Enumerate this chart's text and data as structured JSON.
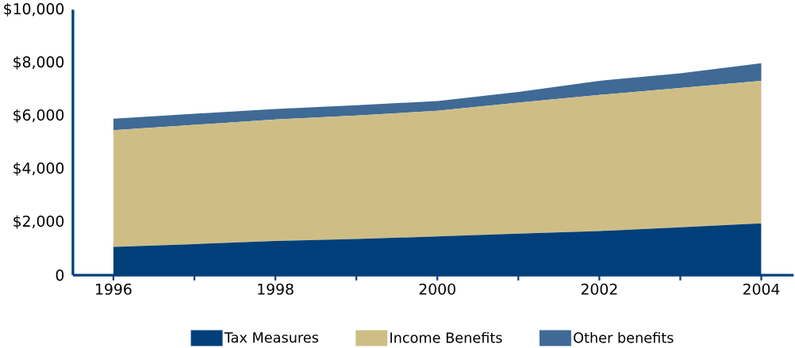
{
  "chart_data": {
    "type": "area",
    "stacked": true,
    "x": [
      1996,
      1997,
      1998,
      1999,
      2000,
      2001,
      2002,
      2003,
      2004
    ],
    "series": [
      {
        "name": "Tax Measures",
        "color": "#003f7a",
        "values": [
          1060,
          1170,
          1290,
          1360,
          1460,
          1560,
          1660,
          1800,
          1950
        ]
      },
      {
        "name": "Income Benefits",
        "color": "#cebe86",
        "values": [
          4400,
          4490,
          4570,
          4650,
          4730,
          4940,
          5130,
          5250,
          5370
        ]
      },
      {
        "name": "Other benefits",
        "color": "#3f6a96",
        "values": [
          430,
          420,
          400,
          390,
          370,
          400,
          530,
          550,
          660
        ]
      }
    ],
    "xlim": [
      1995.5,
      2004.4
    ],
    "ylim": [
      0,
      10000
    ],
    "xticks": [
      1996,
      {
        "value": 1997,
        "label": null
      },
      1998,
      {
        "value": 1999,
        "label": null
      },
      2000,
      {
        "value": 2001,
        "label": null
      },
      2002,
      {
        "value": 2003,
        "label": null
      },
      2004
    ],
    "yticks": [
      {
        "value": 0,
        "label": "0"
      },
      {
        "value": 2000,
        "label": "$2,000"
      },
      {
        "value": 4000,
        "label": "$4,000"
      },
      {
        "value": 6000,
        "label": "$6,000"
      },
      {
        "value": 8000,
        "label": "$8,000"
      },
      {
        "value": 10000,
        "label": "$10,000"
      }
    ],
    "legend": "bottom",
    "grid": false
  }
}
